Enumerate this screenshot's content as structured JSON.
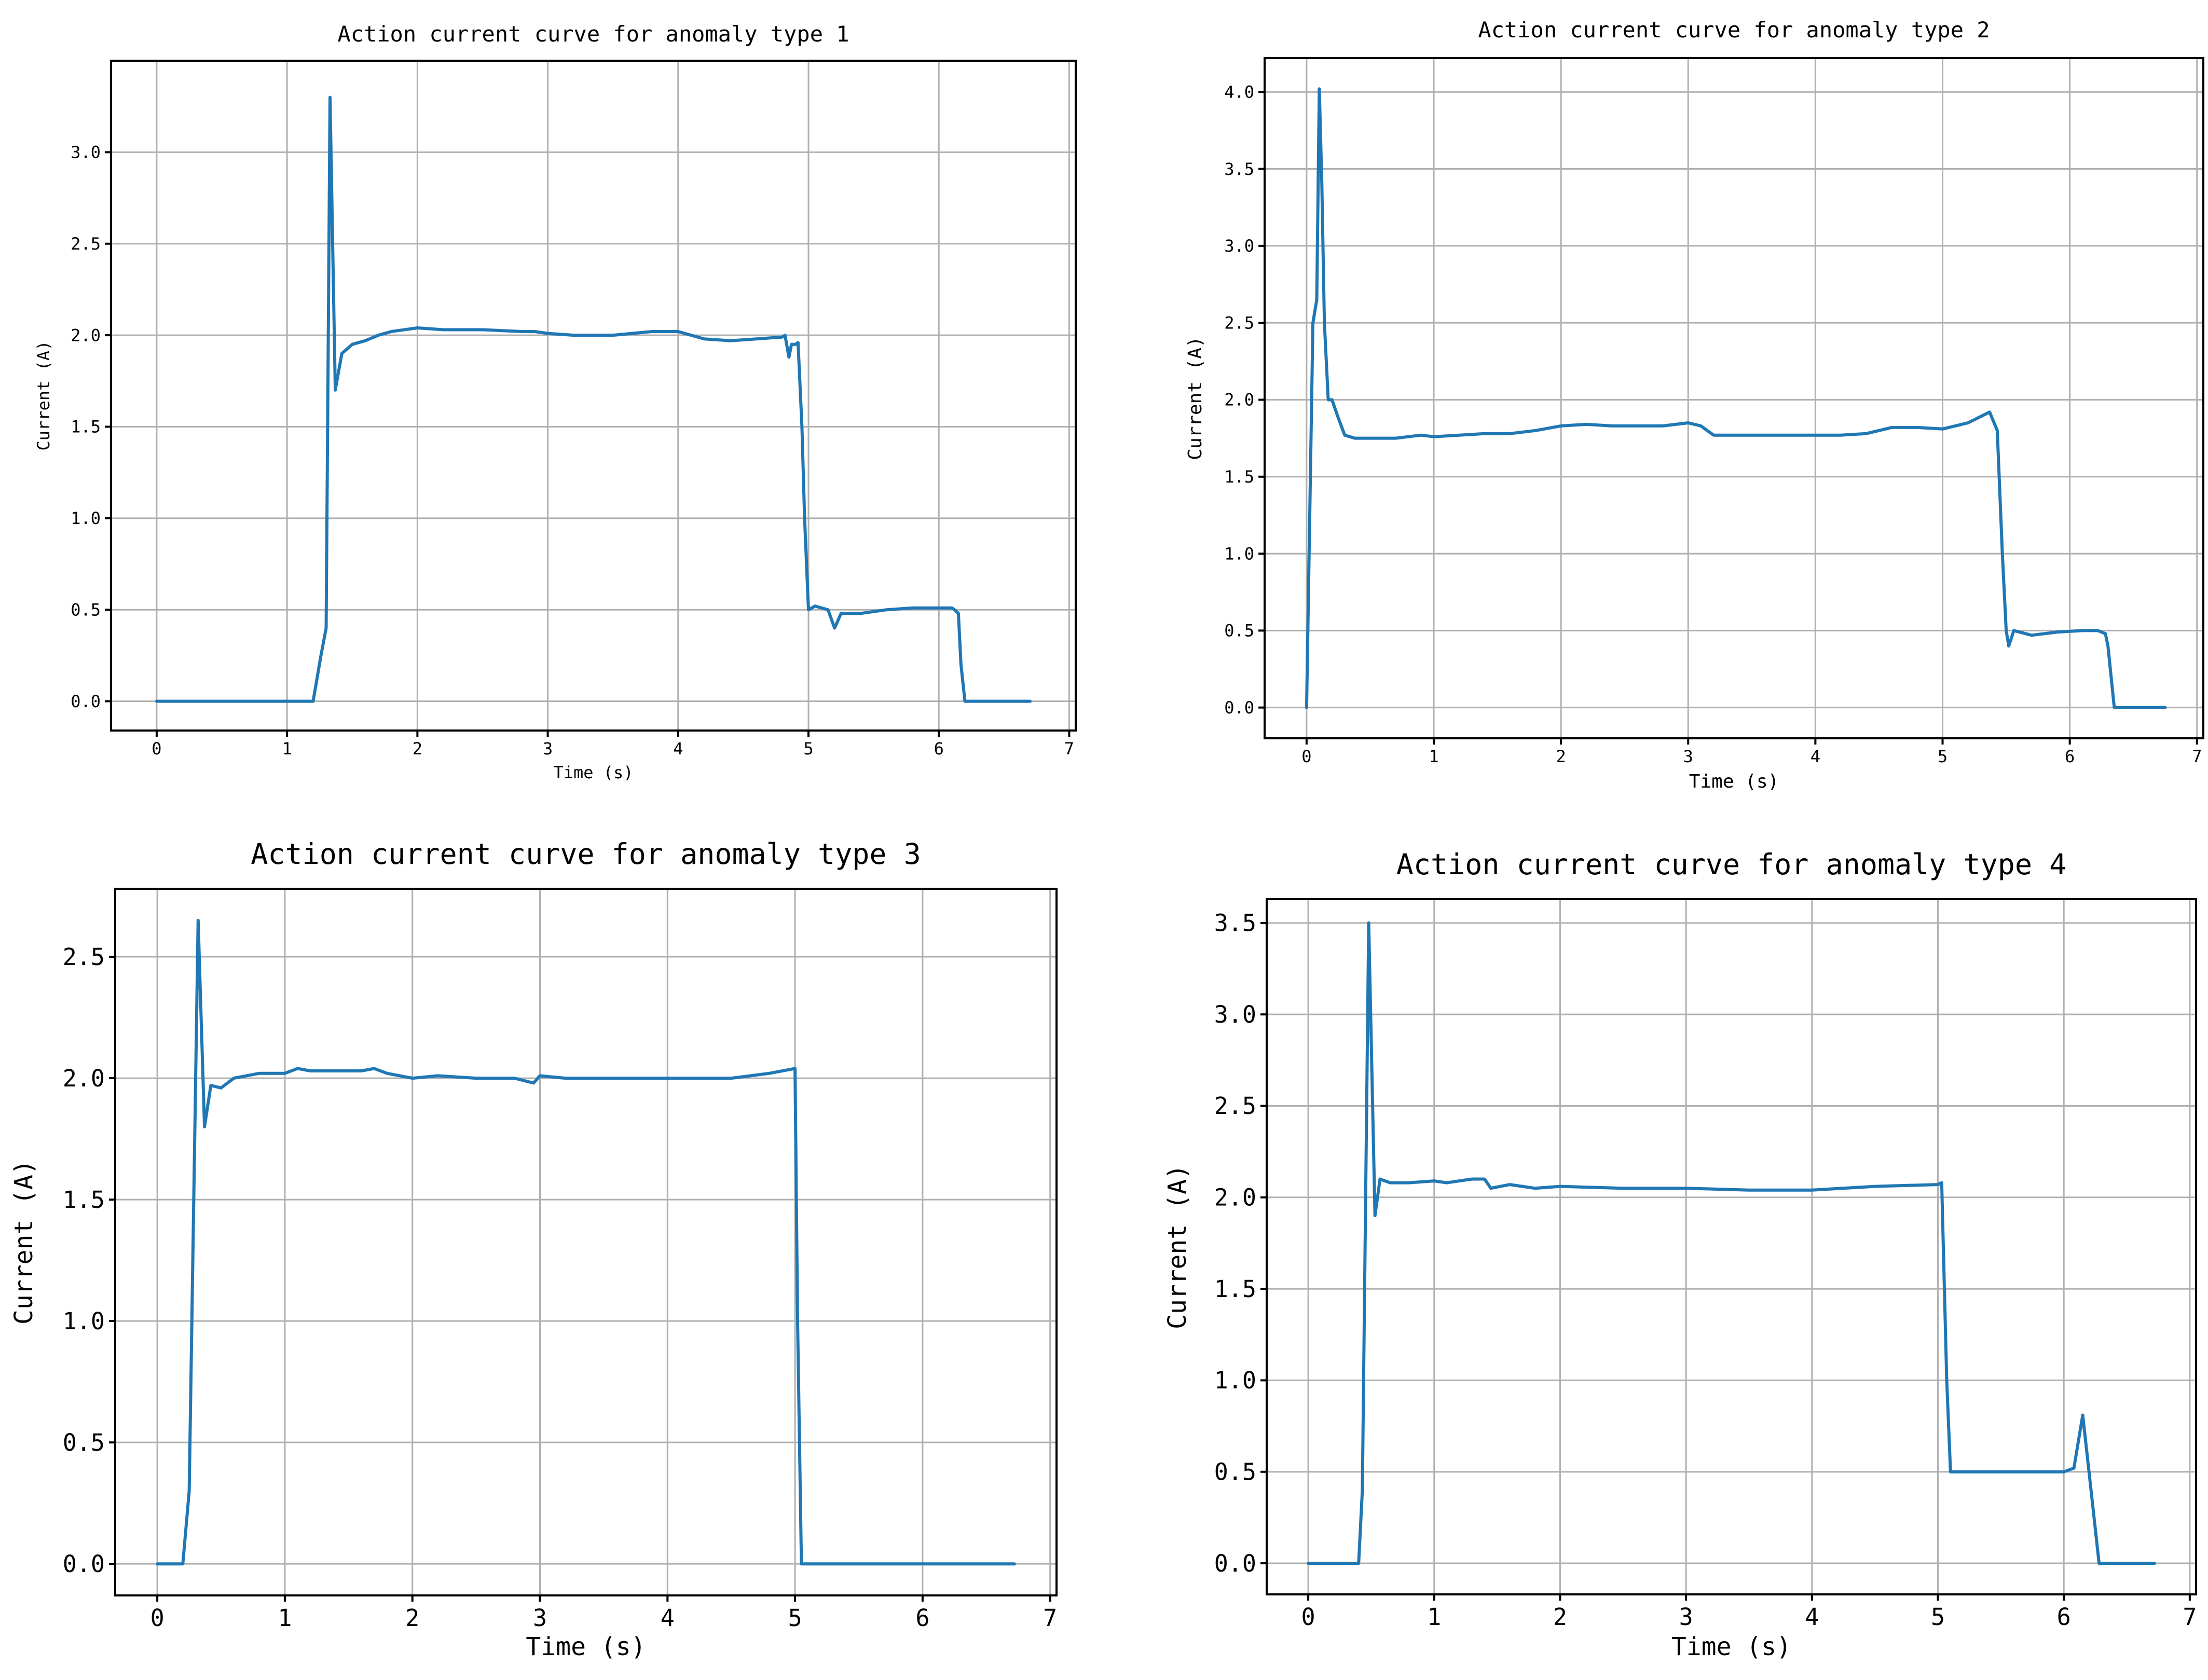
{
  "chart_data": [
    {
      "type": "line",
      "title": "Action current curve for anomaly type 1",
      "xlabel": "Time (s)",
      "ylabel": "Current (A)",
      "xlim": [
        -0.35,
        7.05
      ],
      "ylim": [
        -0.16,
        3.5
      ],
      "xticks": [
        "0",
        "1",
        "2",
        "3",
        "4",
        "5",
        "6",
        "7"
      ],
      "yticks": [
        "0.0",
        "0.5",
        "1.0",
        "1.5",
        "2.0",
        "2.5",
        "3.0"
      ],
      "grid": true,
      "color": "#1f77b4",
      "series": [
        {
          "x": [
            0,
            1.2,
            1.26,
            1.3,
            1.33,
            1.37,
            1.42,
            1.5,
            1.6,
            1.7,
            1.8,
            2.0,
            2.2,
            2.5,
            2.8,
            2.9,
            3.0,
            3.2,
            3.5,
            3.8,
            4.0,
            4.1,
            4.2,
            4.4,
            4.6,
            4.8,
            4.82,
            4.85,
            4.87,
            4.9,
            4.92,
            4.95,
            4.97,
            5.0,
            5.05,
            5.15,
            5.2,
            5.25,
            5.4,
            5.6,
            5.8,
            6.0,
            6.1,
            6.12,
            6.15,
            6.17,
            6.2,
            6.7
          ],
          "y": [
            0,
            0,
            0.25,
            0.4,
            3.3,
            1.7,
            1.9,
            1.95,
            1.97,
            2.0,
            2.02,
            2.04,
            2.03,
            2.03,
            2.02,
            2.02,
            2.01,
            2.0,
            2.0,
            2.02,
            2.02,
            2.0,
            1.98,
            1.97,
            1.98,
            1.99,
            2.0,
            1.88,
            1.95,
            1.95,
            1.96,
            1.5,
            1.0,
            0.5,
            0.52,
            0.5,
            0.4,
            0.48,
            0.48,
            0.5,
            0.51,
            0.51,
            0.51,
            0.5,
            0.48,
            0.2,
            0,
            0
          ]
        }
      ]
    },
    {
      "type": "line",
      "title": "Action current curve for anomaly type 2",
      "xlabel": "Time (s)",
      "ylabel": "Current (A)",
      "xlim": [
        -0.33,
        7.05
      ],
      "ylim": [
        -0.2,
        4.22
      ],
      "xticks": [
        "0",
        "1",
        "2",
        "3",
        "4",
        "5",
        "6",
        "7"
      ],
      "yticks": [
        "0.0",
        "0.5",
        "1.0",
        "1.5",
        "2.0",
        "2.5",
        "3.0",
        "3.5",
        "4.0"
      ],
      "grid": true,
      "color": "#1f77b4",
      "series": [
        {
          "x": [
            0,
            0.05,
            0.08,
            0.1,
            0.12,
            0.14,
            0.17,
            0.2,
            0.25,
            0.3,
            0.38,
            0.5,
            0.7,
            0.9,
            1.0,
            1.2,
            1.4,
            1.6,
            1.8,
            2.0,
            2.2,
            2.4,
            2.6,
            2.8,
            3.0,
            3.1,
            3.2,
            3.4,
            3.6,
            3.8,
            4.0,
            4.2,
            4.4,
            4.6,
            4.8,
            5.0,
            5.2,
            5.37,
            5.43,
            5.47,
            5.5,
            5.52,
            5.56,
            5.7,
            5.9,
            6.1,
            6.22,
            6.28,
            6.3,
            6.35,
            6.75
          ],
          "y": [
            0,
            2.5,
            2.65,
            4.02,
            3.4,
            2.5,
            2.0,
            2.0,
            1.88,
            1.77,
            1.75,
            1.75,
            1.75,
            1.77,
            1.76,
            1.77,
            1.78,
            1.78,
            1.8,
            1.83,
            1.84,
            1.83,
            1.83,
            1.83,
            1.85,
            1.83,
            1.77,
            1.77,
            1.77,
            1.77,
            1.77,
            1.77,
            1.78,
            1.82,
            1.82,
            1.81,
            1.85,
            1.92,
            1.8,
            1.0,
            0.5,
            0.4,
            0.5,
            0.47,
            0.49,
            0.5,
            0.5,
            0.48,
            0.4,
            0,
            0
          ]
        }
      ]
    },
    {
      "type": "line",
      "title": "Action current curve for anomaly type 3",
      "xlabel": "Time (s)",
      "ylabel": "Current (A)",
      "xlim": [
        -0.33,
        7.05
      ],
      "ylim": [
        -0.13,
        2.78
      ],
      "xticks": [
        "0",
        "1",
        "2",
        "3",
        "4",
        "5",
        "6",
        "7"
      ],
      "yticks": [
        "0.0",
        "0.5",
        "1.0",
        "1.5",
        "2.0",
        "2.5"
      ],
      "grid": true,
      "color": "#1f77b4",
      "series": [
        {
          "x": [
            0,
            0.2,
            0.25,
            0.32,
            0.37,
            0.42,
            0.5,
            0.6,
            0.8,
            1.0,
            1.1,
            1.2,
            1.4,
            1.6,
            1.7,
            1.8,
            2.0,
            2.2,
            2.5,
            2.8,
            2.95,
            3.0,
            3.2,
            3.5,
            4.0,
            4.5,
            4.8,
            5.0,
            5.02,
            5.05,
            6.72
          ],
          "y": [
            0,
            0,
            0.3,
            2.65,
            1.8,
            1.97,
            1.96,
            2.0,
            2.02,
            2.02,
            2.04,
            2.03,
            2.03,
            2.03,
            2.04,
            2.02,
            2.0,
            2.01,
            2.0,
            2.0,
            1.98,
            2.01,
            2.0,
            2.0,
            2.0,
            2.0,
            2.02,
            2.04,
            1.0,
            0,
            0
          ]
        }
      ]
    },
    {
      "type": "line",
      "title": "Action current curve for anomaly type 4",
      "xlabel": "Time (s)",
      "ylabel": "Current (A)",
      "xlim": [
        -0.33,
        7.05
      ],
      "ylim": [
        -0.17,
        3.63
      ],
      "xticks": [
        "0",
        "1",
        "2",
        "3",
        "4",
        "5",
        "6",
        "7"
      ],
      "yticks": [
        "0.0",
        "0.5",
        "1.0",
        "1.5",
        "2.0",
        "2.5",
        "3.0",
        "3.5"
      ],
      "grid": true,
      "color": "#1f77b4",
      "series": [
        {
          "x": [
            0,
            0.4,
            0.43,
            0.48,
            0.53,
            0.57,
            0.65,
            0.8,
            1.0,
            1.1,
            1.3,
            1.4,
            1.45,
            1.6,
            1.8,
            2.0,
            2.5,
            3.0,
            3.5,
            4.0,
            4.5,
            5.0,
            5.03,
            5.07,
            5.1,
            5.2,
            5.5,
            5.8,
            6.0,
            6.08,
            6.15,
            6.2,
            6.28,
            6.72
          ],
          "y": [
            0,
            0,
            0.4,
            3.5,
            1.9,
            2.1,
            2.08,
            2.08,
            2.09,
            2.08,
            2.1,
            2.1,
            2.05,
            2.07,
            2.05,
            2.06,
            2.05,
            2.05,
            2.04,
            2.04,
            2.06,
            2.07,
            2.08,
            1.0,
            0.5,
            0.5,
            0.5,
            0.5,
            0.5,
            0.52,
            0.81,
            0.5,
            0,
            0
          ]
        }
      ]
    }
  ]
}
